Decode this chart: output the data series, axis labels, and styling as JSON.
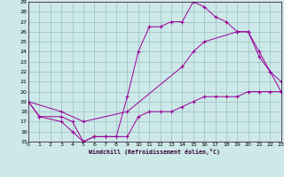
{
  "xlabel": "Windchill (Refroidissement éolien,°C)",
  "background_color": "#cce8e8",
  "grid_color": "#9bbfbf",
  "line_color": "#990099",
  "xlim": [
    0,
    23
  ],
  "ylim": [
    15,
    29
  ],
  "xticks": [
    0,
    1,
    2,
    3,
    4,
    5,
    6,
    7,
    8,
    9,
    10,
    11,
    12,
    13,
    14,
    15,
    16,
    17,
    18,
    19,
    20,
    21,
    22,
    23
  ],
  "yticks": [
    15,
    16,
    17,
    18,
    19,
    20,
    21,
    22,
    23,
    24,
    25,
    26,
    27,
    28,
    29
  ],
  "series": [
    {
      "x": [
        0,
        1,
        3,
        4,
        5,
        6,
        7,
        8,
        9,
        10,
        11,
        12,
        13,
        14,
        15,
        16,
        17,
        18,
        19,
        20,
        21,
        22,
        23
      ],
      "y": [
        19,
        17.5,
        17,
        16,
        15,
        15.5,
        15.5,
        15.5,
        19.5,
        24,
        26.5,
        26.5,
        27,
        27,
        29,
        28.5,
        27.5,
        27,
        26,
        26,
        23.5,
        22,
        21
      ]
    },
    {
      "x": [
        0,
        1,
        3,
        4,
        5,
        6,
        7,
        8,
        9,
        10,
        11,
        12,
        13,
        14,
        15,
        16,
        17,
        18,
        19,
        20,
        21,
        22,
        23
      ],
      "y": [
        19,
        17.5,
        17.5,
        17,
        15,
        15.5,
        15.5,
        15.5,
        15.5,
        17.5,
        18,
        18,
        18,
        18.5,
        19,
        19.5,
        19.5,
        19.5,
        19.5,
        20,
        20,
        20,
        20
      ]
    },
    {
      "x": [
        0,
        3,
        5,
        9,
        14,
        15,
        16,
        19,
        20,
        21,
        22,
        23
      ],
      "y": [
        19,
        18,
        17,
        18,
        22.5,
        24,
        25,
        26,
        26,
        24,
        22,
        20
      ]
    }
  ]
}
